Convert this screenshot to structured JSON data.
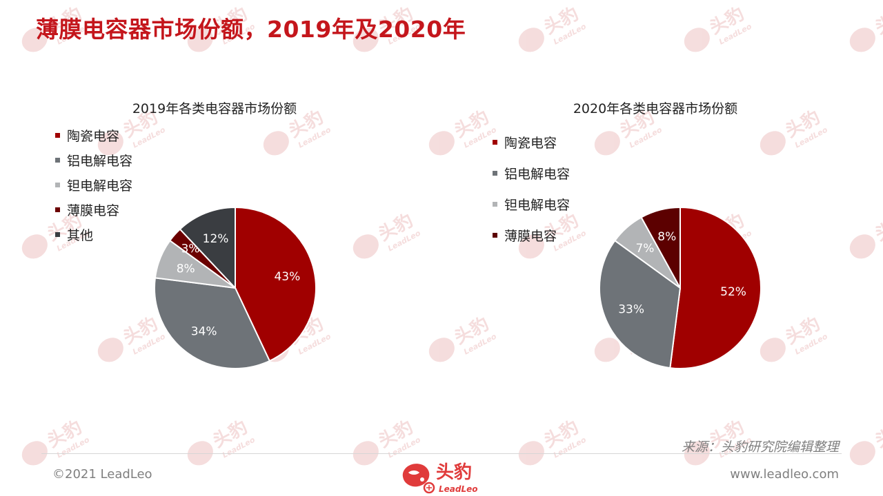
{
  "page": {
    "title": "薄膜电容器市场份额，2019年及2020年",
    "source": "来源：头豹研究院编辑整理",
    "copyright": "©2021 LeadLeo",
    "website": "www.leadleo.com",
    "logo": {
      "cn": "头豹",
      "en": "LeadLeo",
      "color": "#e03b3b"
    },
    "watermark": {
      "cn": "头豹",
      "en": "LeadLeo",
      "color": "#f4dada"
    }
  },
  "chart_data": [
    {
      "type": "pie",
      "title": "2019年各类电容器市场份额",
      "categories": [
        "陶瓷电容",
        "铝电解电容",
        "钽电解电容",
        "薄膜电容",
        "其他"
      ],
      "values": [
        43,
        34,
        8,
        3,
        12
      ],
      "labels": [
        "43%",
        "34%",
        "8%",
        "3%",
        "12%"
      ],
      "colors": [
        "#a00000",
        "#6e7378",
        "#b2b4b6",
        "#6b0000",
        "#3a3d41"
      ],
      "label_colors": [
        "#ffffff",
        "#ffffff",
        "#ffffff",
        "#ffffff",
        "#ffffff"
      ],
      "start_angle_deg": 0,
      "direction": "clockwise",
      "legend_position": "left"
    },
    {
      "type": "pie",
      "title": "2020年各类电容器市场份额",
      "categories": [
        "陶瓷电容",
        "铝电解电容",
        "钽电解电容",
        "薄膜电容"
      ],
      "values": [
        52,
        33,
        7,
        8
      ],
      "labels": [
        "52%",
        "33%",
        "7%",
        "8%"
      ],
      "colors": [
        "#a00000",
        "#6e7378",
        "#b2b4b6",
        "#5c0000"
      ],
      "label_colors": [
        "#ffffff",
        "#ffffff",
        "#ffffff",
        "#ffffff"
      ],
      "start_angle_deg": 0,
      "direction": "clockwise",
      "legend_position": "left"
    }
  ]
}
